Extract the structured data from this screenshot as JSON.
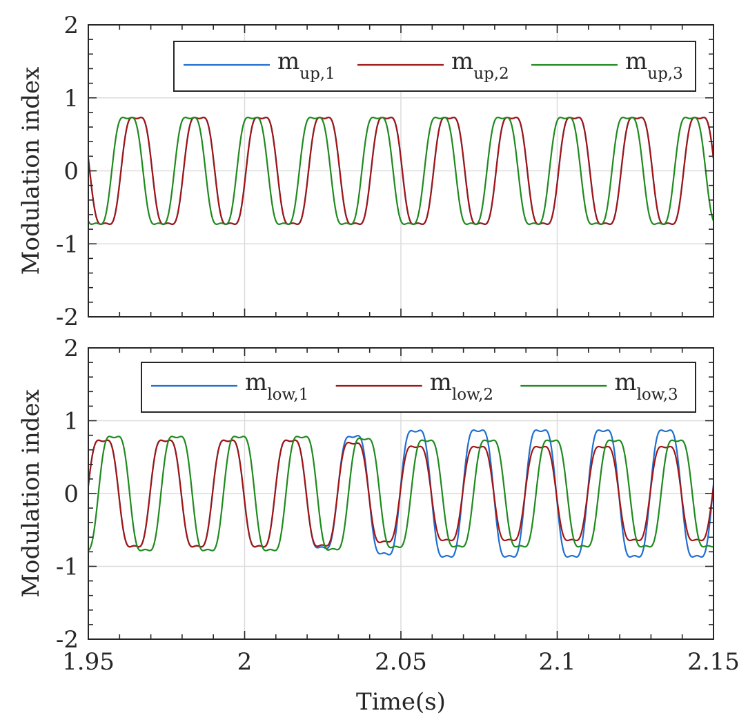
{
  "chart_data": [
    {
      "type": "line",
      "panel": "upper",
      "title": "",
      "xlabel": "",
      "ylabel": "Modulation index",
      "xlim": [
        1.95,
        2.15
      ],
      "ylim": [
        -2,
        2
      ],
      "x_ticks": [
        1.95,
        2.0,
        2.05,
        2.1,
        2.15
      ],
      "x_tick_labels": [],
      "y_ticks": [
        -2,
        -1,
        0,
        1,
        2
      ],
      "y_tick_labels": [
        "-2",
        "-1",
        "0",
        "1",
        "2"
      ],
      "grid": true,
      "legend_position": "top-right",
      "legend_orientation": "horizontal",
      "series": [
        {
          "name": "m_up,1",
          "label_main": "m",
          "label_sub": "up,1",
          "color": "#1f6fd0",
          "frequency_hz": 50,
          "amplitude": 0.84,
          "phase_deg": -8,
          "third_harmonic": 0.15,
          "x_start": 1.95,
          "x_end": 2.15
        },
        {
          "name": "m_up,2",
          "label_main": "m",
          "label_sub": "up,2",
          "color": "#a01515",
          "frequency_hz": 50,
          "amplitude": 0.84,
          "phase_deg": -8,
          "third_harmonic": 0.15,
          "x_start": 1.95,
          "x_end": 2.15
        },
        {
          "name": "m_up,3",
          "label_main": "m",
          "label_sub": "up,3",
          "color": "#1e8a1e",
          "frequency_hz": 50,
          "amplitude": 0.84,
          "phase_deg": 45,
          "third_harmonic": 0.15,
          "x_start": 1.95,
          "x_end": 2.15
        }
      ]
    },
    {
      "type": "line",
      "panel": "lower",
      "title": "",
      "xlabel": "Time(s)",
      "ylabel": "Modulation index",
      "xlim": [
        1.95,
        2.15
      ],
      "ylim": [
        -2,
        2
      ],
      "x_ticks": [
        1.95,
        2.0,
        2.05,
        2.1,
        2.15
      ],
      "x_tick_labels": [
        "1.95",
        "2",
        "2.05",
        "2.1",
        "2.15"
      ],
      "y_ticks": [
        -2,
        -1,
        0,
        1,
        2
      ],
      "y_tick_labels": [
        "-2",
        "-1",
        "0",
        "1",
        "2"
      ],
      "grid": true,
      "legend_position": "top-right",
      "legend_orientation": "horizontal",
      "series": [
        {
          "name": "m_low,1",
          "label_main": "m",
          "label_sub": "low,1",
          "color": "#1f6fd0",
          "frequency_hz": 50,
          "amplitude_start": 0.84,
          "amplitude_end": 1.0,
          "phase_deg": 185,
          "third_harmonic": 0.15,
          "transition": [
            2.015,
            2.06
          ],
          "x_start": 1.95,
          "x_end": 2.15
        },
        {
          "name": "m_low,2",
          "label_main": "m",
          "label_sub": "low,2",
          "color": "#a01515",
          "frequency_hz": 50,
          "amplitude_start": 0.84,
          "amplitude_end": 0.74,
          "phase_deg": 185,
          "third_harmonic": 0.15,
          "transition": [
            2.015,
            2.06
          ],
          "x_start": 1.95,
          "x_end": 2.15
        },
        {
          "name": "m_low,3",
          "label_main": "m",
          "label_sub": "low,3",
          "color": "#1e8a1e",
          "frequency_hz": 50,
          "amplitude_start": 0.9,
          "amplitude_end": 0.84,
          "phase_deg": 122,
          "third_harmonic": 0.15,
          "transition": [
            2.015,
            2.06
          ],
          "x_start": 1.95,
          "x_end": 2.15
        }
      ]
    }
  ]
}
